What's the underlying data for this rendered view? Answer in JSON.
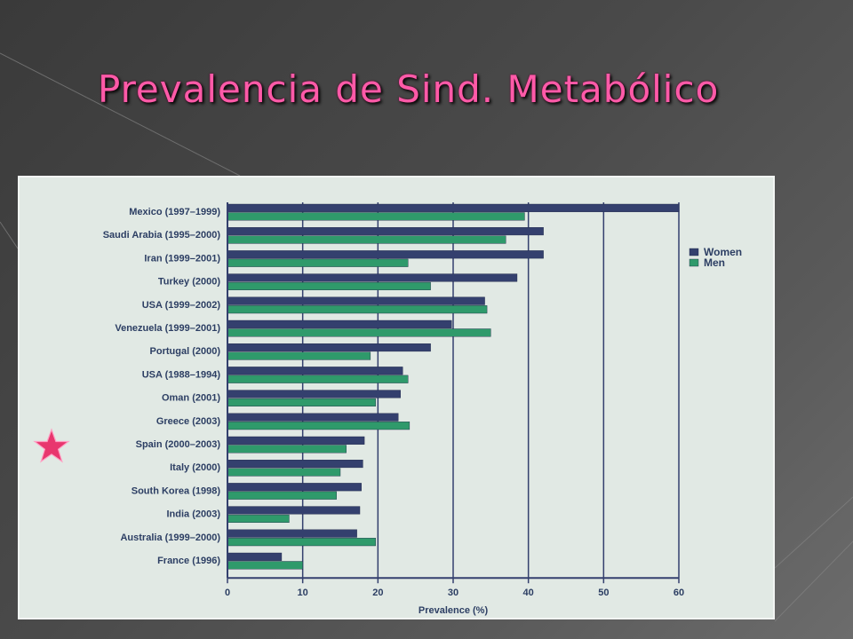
{
  "slide": {
    "title": "Prevalencia de Sind. Metabólico"
  },
  "colors": {
    "title": "#ff5aa8",
    "women": "#34406e",
    "men": "#2f9a6b",
    "gridline": "#34406e",
    "panel": "#e1e9e4",
    "star": "#e8366e"
  },
  "icons": {
    "highlight": "star-icon"
  },
  "chart_data": {
    "type": "bar",
    "orientation": "horizontal",
    "categories": [
      "Mexico (1997–1999)",
      "Saudi Arabia (1995–2000)",
      "Iran (1999–2001)",
      "Turkey (2000)",
      "USA (1999–2002)",
      "Venezuela (1999–2001)",
      "Portugal (2000)",
      "USA (1988–1994)",
      "Oman (2001)",
      "Greece (2003)",
      "Spain (2000–2003)",
      "Italy (2000)",
      "South Korea (1998)",
      "India (2003)",
      "Australia (1999–2000)",
      "France (1996)"
    ],
    "series": [
      {
        "name": "Women",
        "values": [
          60,
          42,
          42,
          38.5,
          34.2,
          29.8,
          27,
          23.3,
          23,
          22.7,
          18.2,
          18,
          17.8,
          17.6,
          17.2,
          7.2
        ]
      },
      {
        "name": "Men",
        "values": [
          39.5,
          37,
          24,
          27,
          34.5,
          35,
          19,
          24,
          19.7,
          24.2,
          15.8,
          15,
          14.5,
          8.2,
          19.7,
          10
        ]
      }
    ],
    "xlabel": "Prevalence (%)",
    "ylabel": "",
    "xlim": [
      0,
      60
    ],
    "xticks": [
      0,
      10,
      20,
      30,
      40,
      50,
      60
    ],
    "grid": true,
    "legend": "top-right",
    "highlighted_category": "Spain (2000–2003)"
  }
}
